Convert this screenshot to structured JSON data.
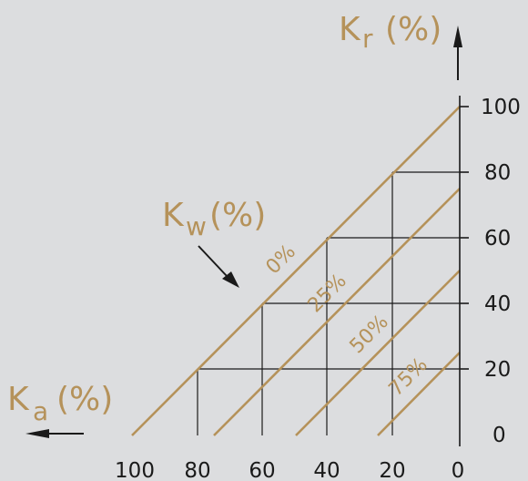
{
  "axes": {
    "kr": {
      "main": "K",
      "sub": "r",
      "unit": "(%)"
    },
    "ka": {
      "main": "K",
      "sub": "a",
      "unit": "(%)"
    },
    "kw": {
      "main": "K",
      "sub": "w",
      "unit": "(%)"
    }
  },
  "ticks": {
    "x": [
      "100",
      "80",
      "60",
      "40",
      "20",
      "0"
    ],
    "y": [
      "100",
      "80",
      "60",
      "40",
      "20",
      "0"
    ]
  },
  "kw_lines": [
    {
      "label": "0%",
      "kw": 0
    },
    {
      "label": "25%",
      "kw": 25
    },
    {
      "label": "50%",
      "kw": 50
    },
    {
      "label": "75%",
      "kw": 75
    }
  ],
  "colors": {
    "background": "#dcdddf",
    "accent": "#b5925a",
    "ink": "#1a1a1a"
  }
}
